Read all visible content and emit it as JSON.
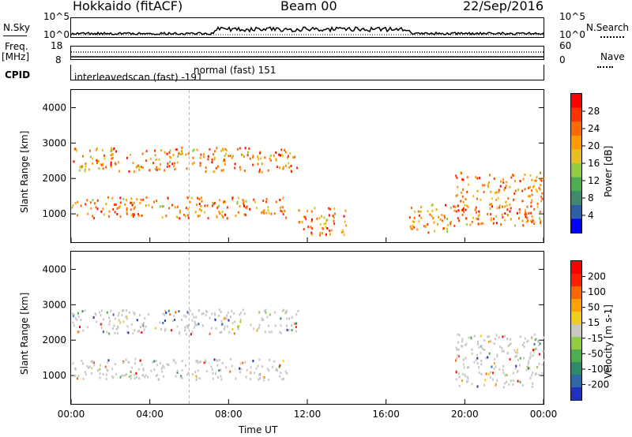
{
  "header": {
    "radar": "Hokkaido (fitACF)",
    "beam": "Beam 00",
    "date": "22/Sep/2016"
  },
  "left_labels": {
    "nsky": "N.Sky",
    "freq_a": "Freq.",
    "freq_b": "[MHz]",
    "cpid": "CPID"
  },
  "right_labels": {
    "nsearch": "N.Search",
    "nave": "Nave"
  },
  "noise_axis": {
    "top": "10^5",
    "bottom": "10^0"
  },
  "freq_axis": {
    "top": "18",
    "bottom": "8"
  },
  "nave_axis": {
    "top": "60",
    "bottom": "0"
  },
  "cpid": {
    "mode1": "interleavedscan (fast) -191",
    "mode2": "normal (fast) 151"
  },
  "colors": {
    "power": [
      "#0000ff",
      "#2d5ea8",
      "#3f8a6a",
      "#4cae4c",
      "#8fcc3f",
      "#e6c020",
      "#ff9a00",
      "#ff6a00",
      "#ff3300",
      "#ff0000"
    ],
    "velocity": [
      "#2030c0",
      "#2e68a8",
      "#2e8a6a",
      "#4cae4c",
      "#8fcc3f",
      "#c8c8c0",
      "#f2cc1a",
      "#ffa000",
      "#ff6600",
      "#ff2000",
      "#ff0000"
    ]
  },
  "chart_data": [
    {
      "type": "heatmap",
      "name": "power",
      "ylabel": "Slant Range [km]",
      "yticks": [
        "4000",
        "3000",
        "2000",
        "1000"
      ],
      "ylim": [
        200,
        4500
      ],
      "xlim": [
        "00:00",
        "24:00"
      ],
      "colorbar": {
        "label": "Power [dB]",
        "ticks": [
          "28",
          "24",
          "20",
          "16",
          "12",
          "8",
          "4"
        ],
        "range": [
          0,
          30
        ]
      },
      "features": [
        {
          "feature": "main band",
          "time_h": [
            0,
            11
          ],
          "range_km": [
            900,
            1500
          ],
          "power_db": [
            16,
            30
          ]
        },
        {
          "feature": "upper band",
          "time_h": [
            0,
            11.5
          ],
          "range_km": [
            2200,
            2900
          ],
          "power_db": [
            8,
            24
          ]
        },
        {
          "feature": "patch",
          "time_h": [
            11.5,
            14
          ],
          "range_km": [
            400,
            1200
          ],
          "power_db": [
            12,
            28
          ]
        },
        {
          "feature": "patch",
          "time_h": [
            17,
            19.5
          ],
          "range_km": [
            500,
            1300
          ],
          "power_db": [
            12,
            28
          ]
        },
        {
          "feature": "evening band",
          "time_h": [
            19.5,
            24
          ],
          "range_km": [
            700,
            2200
          ],
          "power_db": [
            16,
            30
          ]
        }
      ]
    },
    {
      "type": "heatmap",
      "name": "velocity",
      "ylabel": "Slant Range [km]",
      "yticks": [
        "4000",
        "3000",
        "2000",
        "1000"
      ],
      "ylim": [
        200,
        4500
      ],
      "xlim": [
        "00:00",
        "24:00"
      ],
      "xticks": [
        "00:00",
        "04:00",
        "08:00",
        "12:00",
        "16:00",
        "20:00",
        "00:00"
      ],
      "xlabel": "Time UT",
      "colorbar": {
        "label": "Velocity [m s-1]",
        "ticks": [
          "200",
          "100",
          "50",
          "15",
          "-15",
          "-50",
          "-100",
          "-200"
        ],
        "range": [
          -250,
          250
        ]
      },
      "features": [
        {
          "feature": "ground scatter band",
          "time_h": [
            0,
            11
          ],
          "range_km": [
            900,
            1500
          ],
          "velocity_ms": [
            -15,
            15
          ]
        },
        {
          "feature": "upper band",
          "time_h": [
            0,
            11.5
          ],
          "range_km": [
            2200,
            2900
          ],
          "velocity_ms": [
            -15,
            15
          ]
        },
        {
          "feature": "evening band",
          "time_h": [
            19.5,
            24
          ],
          "range_km": [
            700,
            2200
          ],
          "velocity_ms": [
            -15,
            50
          ]
        }
      ]
    }
  ]
}
